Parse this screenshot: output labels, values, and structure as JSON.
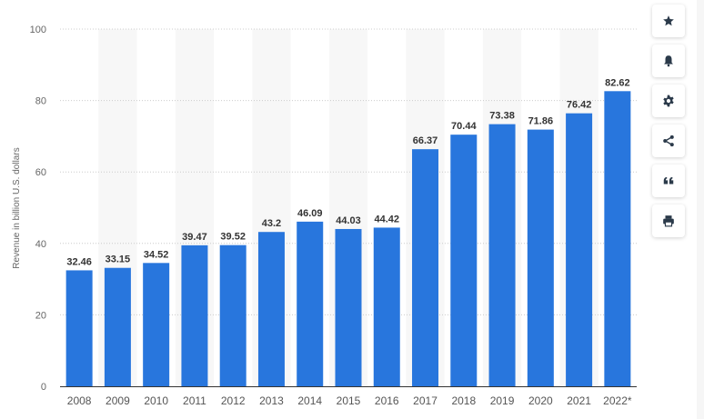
{
  "chart_data": {
    "type": "bar",
    "ylabel": "Revenue in billion U.S. dollars",
    "ylim": [
      0,
      100
    ],
    "yticks": [
      0,
      20,
      40,
      60,
      80,
      100
    ],
    "categories": [
      "2008",
      "2009",
      "2010",
      "2011",
      "2012",
      "2013",
      "2014",
      "2015",
      "2016",
      "2017",
      "2018",
      "2019",
      "2020",
      "2021",
      "2022*"
    ],
    "values": [
      32.46,
      33.15,
      34.52,
      39.47,
      39.52,
      43.2,
      46.09,
      44.03,
      44.42,
      66.37,
      70.44,
      73.38,
      71.86,
      76.42,
      82.62
    ],
    "value_labels": [
      "32.46",
      "33.15",
      "34.52",
      "39.47",
      "39.52",
      "43.2",
      "46.09",
      "44.03",
      "44.42",
      "66.37",
      "70.44",
      "73.38",
      "71.86",
      "76.42",
      "82.62"
    ],
    "bar_color": "#2876dd",
    "grid": true,
    "alternating_column_shading": true
  },
  "tools": [
    {
      "icon": "star-icon"
    },
    {
      "icon": "bell-icon"
    },
    {
      "icon": "gear-icon"
    },
    {
      "icon": "share-icon"
    },
    {
      "icon": "quote-icon"
    },
    {
      "icon": "print-icon"
    }
  ]
}
